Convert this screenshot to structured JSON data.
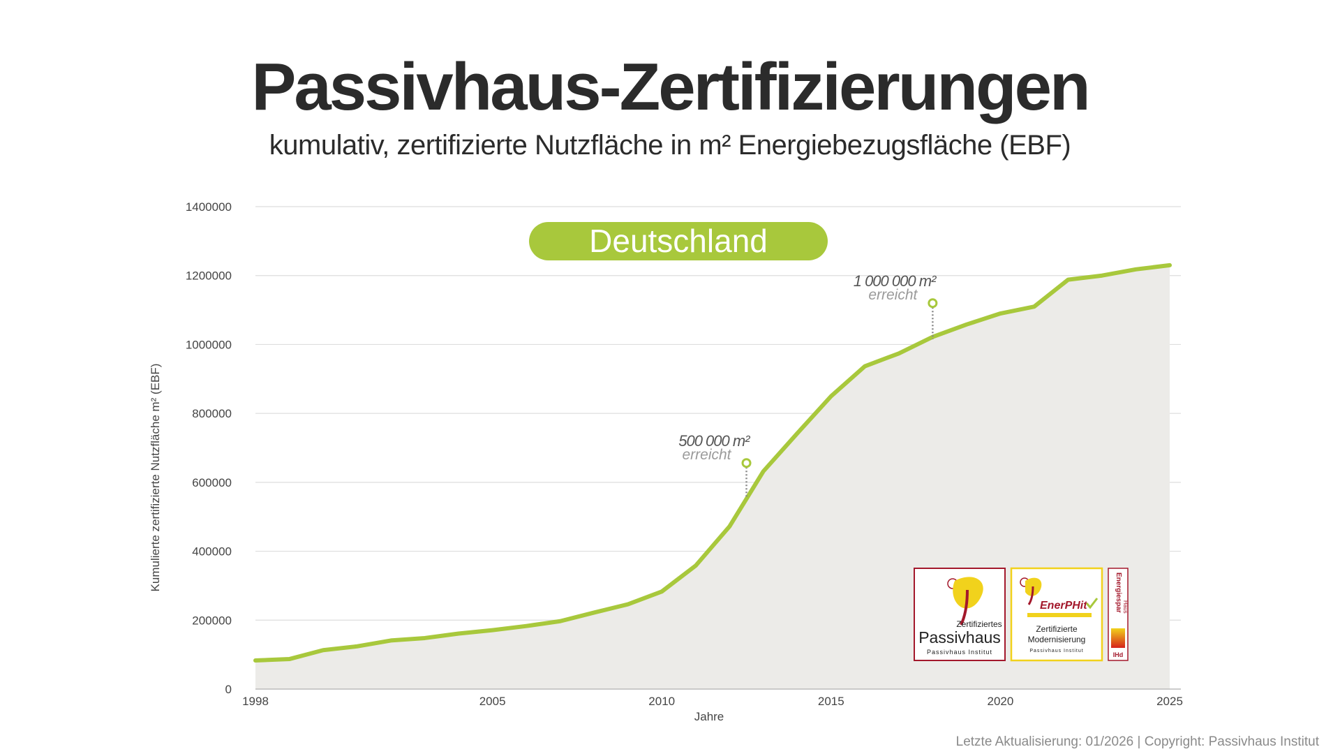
{
  "header": {
    "title": "Passivhaus-Zertifizierungen",
    "subtitle": "kumulativ, zertifizierte Nutzfläche in m² Energiebezugsfläche (EBF)"
  },
  "footer": {
    "text": "Letzte Aktualisierung: 01/2026 | Copyright: Passivhaus Institut"
  },
  "colors": {
    "line": "#a8c83c",
    "area": "#ecebe8",
    "grid": "#dddddd",
    "badge": "#a8c83c",
    "logo_red": "#a3182b",
    "logo_yellow": "#f1d21c",
    "annotation": "#777777"
  },
  "chart_data": {
    "type": "area",
    "title": "Deutschland",
    "xlabel": "Jahre",
    "ylabel": "Kumulierte zertifizierte Nutzfläche m² (EBF)",
    "xlim": [
      1998,
      2025
    ],
    "ylim": [
      0,
      1400000
    ],
    "x_ticks": [
      {
        "value": 1998,
        "label": "1998"
      },
      {
        "value": 2005,
        "label": "2005"
      },
      {
        "value": 2010,
        "label": "2010"
      },
      {
        "value": 2015,
        "label": "2015"
      },
      {
        "value": 2020,
        "label": "2020"
      },
      {
        "value": 2025,
        "label": "2025"
      }
    ],
    "y_ticks": [
      {
        "value": 0,
        "label": "0"
      },
      {
        "value": 200000,
        "label": "200000"
      },
      {
        "value": 400000,
        "label": "400000"
      },
      {
        "value": 600000,
        "label": "600000"
      },
      {
        "value": 800000,
        "label": "800000"
      },
      {
        "value": 1000000,
        "label": "1000000"
      },
      {
        "value": 1200000,
        "label": "1200000"
      },
      {
        "value": 1400000,
        "label": "1400000"
      }
    ],
    "series": [
      {
        "name": "Deutschland",
        "x": [
          1998,
          1999,
          2000,
          2001,
          2002,
          2003,
          2004,
          2005,
          2006,
          2007,
          2008,
          2009,
          2010,
          2011,
          2012,
          2013,
          2014,
          2015,
          2016,
          2017,
          2018,
          2019,
          2020,
          2021,
          2022,
          2023,
          2024,
          2025
        ],
        "values": [
          83000,
          87000,
          113000,
          124000,
          141000,
          148000,
          161000,
          171000,
          183000,
          197000,
          222000,
          246000,
          283000,
          358000,
          472000,
          632000,
          742000,
          850000,
          937000,
          974000,
          1022000,
          1058000,
          1090000,
          1110000,
          1188000,
          1200000,
          1218000,
          1230000
        ]
      }
    ],
    "annotations": [
      {
        "label": "500 000 m²",
        "sublabel": "erreicht",
        "x": 2012.5,
        "marker_value": 656000,
        "line_to": 555000
      },
      {
        "label": "1 000 000 m²",
        "sublabel": "erreicht",
        "x": 2018,
        "marker_value": 1120000,
        "line_to": 1015000
      }
    ],
    "legend": "top-center"
  },
  "logos": {
    "passivhaus": {
      "line1": "Zertifiziertes",
      "line2": "Passivhaus",
      "line3": "Passivhaus Institut"
    },
    "enerphit": {
      "brand": "EnerPHit",
      "line1": "Zertifizierte",
      "line2": "Modernisierung",
      "line3": "Passivhaus Institut"
    },
    "energiespar": {
      "line1": "Energiespar",
      "line2": "Haus",
      "line3": "IHd"
    }
  }
}
